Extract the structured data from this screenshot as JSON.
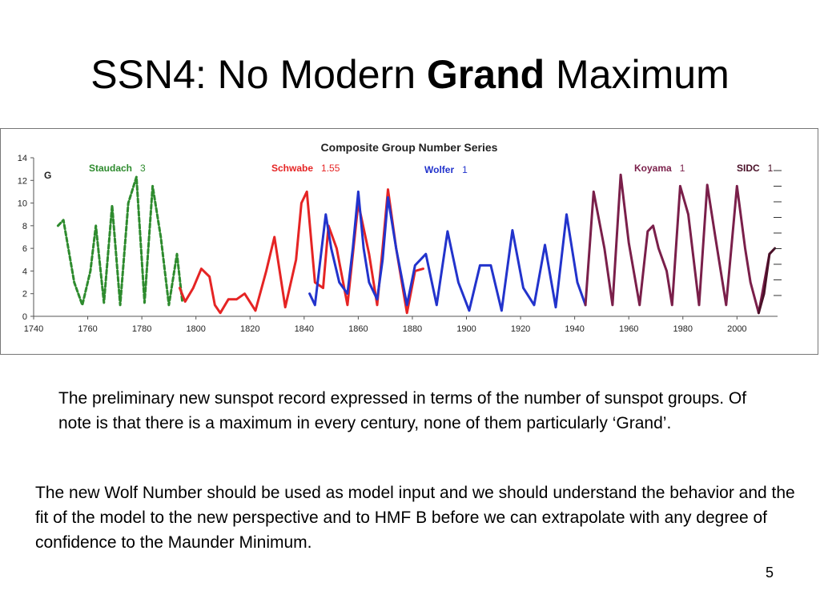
{
  "slide": {
    "title_part1": "SSN4: No Modern ",
    "title_bold": "Grand",
    "title_part2": " Maximum",
    "paragraph1": "The preliminary new sunspot record expressed in terms of the number of sunspot groups. Of note is that there is a maximum in every century, none of them particularly ‘Grand’.",
    "paragraph2": "The new Wolf Number should be used as model input and we should understand the behavior and the fit of the model to the new perspective and to HMF B before we can extrapolate with any degree of confidence to the Maunder Minimum.",
    "page_number": "5"
  },
  "chart_data": {
    "type": "line",
    "title": "Composite Group Number Series",
    "ylabel": "G",
    "xlim": [
      1740,
      2015
    ],
    "ylim": [
      0,
      14
    ],
    "x_ticks": [
      1740,
      1760,
      1780,
      1800,
      1820,
      1840,
      1860,
      1880,
      1900,
      1920,
      1940,
      1960,
      1980,
      2000
    ],
    "y_ticks": [
      0,
      2,
      4,
      6,
      8,
      10,
      12,
      14
    ],
    "grid": false,
    "legend": "labels placed along the top of the plot",
    "series": [
      {
        "name": "Staudach",
        "scale": "3",
        "color": "#2e8b2e",
        "style": "dashed",
        "x": [
          1749,
          1751,
          1755,
          1758,
          1761,
          1763,
          1766,
          1769,
          1772,
          1775,
          1778,
          1781,
          1784,
          1787,
          1790,
          1793,
          1795
        ],
        "y": [
          8.0,
          8.5,
          3.0,
          1.0,
          4.0,
          8.0,
          1.2,
          9.8,
          1.0,
          10.0,
          12.3,
          1.2,
          11.5,
          7.0,
          1.0,
          5.5,
          1.2
        ]
      },
      {
        "name": "Schwabe",
        "scale": "1.55",
        "color": "#e52424",
        "style": "solid",
        "x": [
          1794,
          1796,
          1799,
          1802,
          1805,
          1807,
          1809,
          1812,
          1815,
          1818,
          1822,
          1826,
          1829,
          1833,
          1837,
          1839,
          1841,
          1844,
          1847,
          1849,
          1852,
          1856,
          1860,
          1864,
          1867,
          1869,
          1871,
          1874,
          1878,
          1881,
          1884
        ],
        "y": [
          2.5,
          1.3,
          2.5,
          4.2,
          3.5,
          1.0,
          0.3,
          1.5,
          1.5,
          2.0,
          0.5,
          4.0,
          7.0,
          0.8,
          5.0,
          10.0,
          11.0,
          3.0,
          2.5,
          8.0,
          6.0,
          1.0,
          10.0,
          5.5,
          1.0,
          6.0,
          11.2,
          6.0,
          0.3,
          4.0,
          4.2
        ]
      },
      {
        "name": "Wolfer",
        "scale": "1",
        "color": "#2233cc",
        "style": "solid",
        "x": [
          1842,
          1844,
          1848,
          1850,
          1853,
          1856,
          1858,
          1860,
          1862,
          1864,
          1867,
          1869,
          1871,
          1874,
          1878,
          1881,
          1885,
          1889,
          1893,
          1897,
          1901,
          1905,
          1909,
          1913,
          1917,
          1921,
          1925,
          1929,
          1933,
          1937,
          1941,
          1944
        ],
        "y": [
          2.0,
          1.0,
          9.0,
          6.0,
          3.0,
          2.0,
          6.0,
          11.0,
          6.0,
          3.0,
          1.5,
          5.0,
          10.5,
          6.0,
          1.0,
          4.5,
          5.5,
          1.0,
          7.5,
          3.0,
          0.5,
          4.5,
          4.5,
          0.5,
          7.6,
          2.5,
          1.0,
          6.3,
          0.8,
          9.0,
          3.0,
          1.0
        ]
      },
      {
        "name": "Koyama",
        "scale": "1",
        "color": "#7a1f4a",
        "style": "solid",
        "x": [
          1944,
          1947,
          1951,
          1954,
          1957,
          1960,
          1964,
          1967,
          1969,
          1971,
          1974,
          1976,
          1979,
          1982,
          1986,
          1989,
          1992,
          1996,
          2000,
          2003,
          2005,
          2008,
          2012
        ],
        "y": [
          1.0,
          11.0,
          6.0,
          1.0,
          12.5,
          6.5,
          1.0,
          7.5,
          8.0,
          6.0,
          4.0,
          1.0,
          11.5,
          9.0,
          1.0,
          11.6,
          7.0,
          1.0,
          11.5,
          6.0,
          3.0,
          0.3,
          5.5
        ]
      },
      {
        "name": "SIDC",
        "scale": "1",
        "color": "#4a1028",
        "style": "solid",
        "x": [
          2008,
          2010,
          2012,
          2014
        ],
        "y": [
          0.3,
          2.0,
          5.5,
          6.0
        ]
      }
    ]
  }
}
